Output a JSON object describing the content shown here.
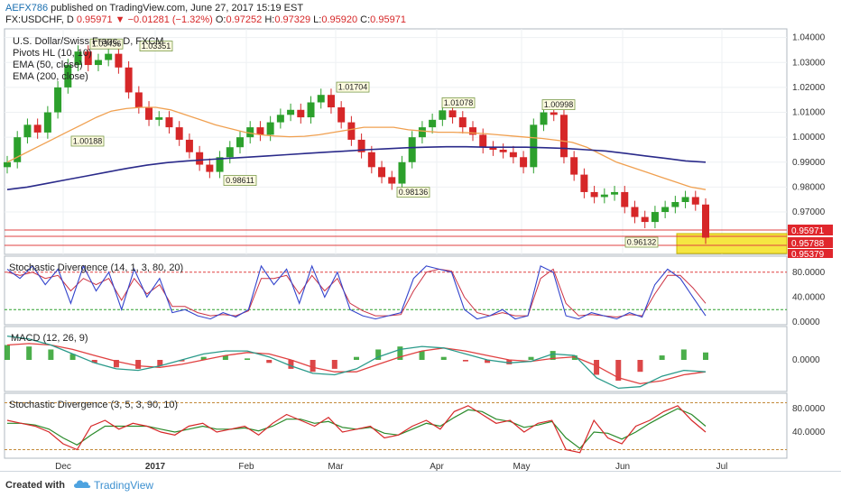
{
  "header": {
    "author": "AEFX786",
    "published_text": "published on TradingView.com, June 27, 2017 15:19 EST",
    "symbol": "FX:USDCHF, D",
    "last": "0.95971",
    "change": "−0.01281 (−1.32%)",
    "o_label": "O:",
    "o": "0.97252",
    "h_label": "H:",
    "h": "0.97329",
    "l_label": "L:",
    "l": "0.95920",
    "c_label": "C:",
    "c": "0.95971"
  },
  "footer": {
    "created_with": "Created with",
    "brand": "TradingView"
  },
  "colors": {
    "up": "#2ca02c",
    "down": "#d62728",
    "ema50": "#f0a050",
    "ema200": "#2a2a8a",
    "stoch_k": "#3344cc",
    "stoch_d": "#cc3344",
    "macd": "#2a9a8a",
    "signal": "#e04040"
  },
  "chart_data": [
    {
      "type": "candlestick",
      "title": "U.S. Dollar/Swiss Franc, D, FXCM",
      "legend": [
        "Pivots HL (10, 10)",
        "EMA (50, close)",
        "EMA (200, close)"
      ],
      "x_ticks": [
        "Dec",
        "2017",
        "Feb",
        "Mar",
        "Apr",
        "May",
        "Jun",
        "Jul"
      ],
      "y_ticks": [
        "1.04000",
        "1.03000",
        "1.02000",
        "1.01000",
        "1.00000",
        "0.99000",
        "0.98000",
        "0.97000"
      ],
      "ylim": [
        0.953,
        1.0435
      ],
      "price_tags": [
        "0.95971",
        "0.95788",
        "0.95379"
      ],
      "close_path": [
        0.99,
        1.0,
        1.005,
        1.0019,
        1.01,
        1.02,
        1.029,
        1.0344,
        1.029,
        1.031,
        1.0335,
        1.028,
        1.018,
        1.012,
        1.007,
        1.008,
        1.004,
        0.999,
        0.994,
        0.989,
        0.9861,
        0.992,
        0.996,
        1.0,
        1.004,
        1.001,
        1.006,
        1.009,
        1.011,
        1.008,
        1.014,
        1.017,
        1.012,
        1.006,
        0.999,
        0.994,
        0.988,
        0.984,
        0.9814,
        0.99,
        1.0,
        1.004,
        1.007,
        1.0108,
        1.008,
        1.004,
        1.001,
        0.996,
        0.995,
        0.994,
        0.992,
        0.988,
        1.005,
        1.01,
        1.009,
        0.992,
        0.985,
        0.978,
        0.976,
        0.977,
        0.978,
        0.972,
        0.968,
        0.966,
        0.97,
        0.972,
        0.974,
        0.976,
        0.973,
        0.9597
      ],
      "ema50_path": [
        0.99,
        0.993,
        0.996,
        0.999,
        1.002,
        1.005,
        1.008,
        1.0105,
        1.0115,
        1.012,
        1.012,
        1.011,
        1.009,
        1.007,
        1.005,
        1.0035,
        1.002,
        1.001,
        1.0005,
        1.0002,
        1.0004,
        1.001,
        1.002,
        1.003,
        1.004,
        1.004,
        1.004,
        1.003,
        1.0025,
        1.002,
        1.002,
        1.0018,
        1.0015,
        1.001,
        1.0005,
        1.0,
        0.9995,
        0.9988,
        0.998,
        0.996,
        0.993,
        0.99,
        0.988,
        0.986,
        0.984,
        0.982,
        0.98,
        0.979
      ],
      "ema200_path": [
        0.979,
        0.98,
        0.9815,
        0.983,
        0.9845,
        0.986,
        0.9875,
        0.9888,
        0.9898,
        0.9905,
        0.991,
        0.9915,
        0.992,
        0.9925,
        0.993,
        0.9935,
        0.994,
        0.9945,
        0.995,
        0.9954,
        0.9958,
        0.996,
        0.9962,
        0.9962,
        0.996,
        0.996,
        0.996,
        0.9958,
        0.9955,
        0.995,
        0.9945,
        0.9935,
        0.9925,
        0.9915,
        0.9905,
        0.99
      ],
      "pivots": [
        {
          "label": "1.03436",
          "value": 1.03436,
          "kind": "high"
        },
        {
          "label": "1.03351",
          "value": 1.03351,
          "kind": "high"
        },
        {
          "label": "1.00188",
          "value": 1.00188,
          "kind": "low"
        },
        {
          "label": "0.98611",
          "value": 0.98611,
          "kind": "low"
        },
        {
          "label": "1.01704",
          "value": 1.01704,
          "kind": "high"
        },
        {
          "label": "1.01078",
          "value": 1.01078,
          "kind": "high"
        },
        {
          "label": "0.98136",
          "value": 0.98136,
          "kind": "low"
        },
        {
          "label": "1.00998",
          "value": 1.00998,
          "kind": "high"
        },
        {
          "label": "0.96132",
          "value": 0.96132,
          "kind": "low"
        }
      ]
    },
    {
      "type": "line",
      "title": "Stochastic Divergence (14, 1, 3, 80, 20)",
      "y_ticks": [
        "80.0000",
        "40.0000",
        "0.0000"
      ],
      "ylim": [
        0,
        100
      ],
      "k_path": [
        85,
        70,
        90,
        60,
        85,
        30,
        90,
        50,
        80,
        20,
        85,
        40,
        70,
        15,
        20,
        10,
        5,
        15,
        8,
        20,
        90,
        60,
        85,
        30,
        90,
        40,
        80,
        20,
        10,
        5,
        10,
        15,
        70,
        90,
        85,
        80,
        20,
        5,
        10,
        20,
        5,
        10,
        90,
        80,
        10,
        5,
        15,
        10,
        5,
        15,
        8,
        60,
        85,
        70,
        40,
        10
      ],
      "d_path": [
        80,
        75,
        80,
        70,
        75,
        50,
        70,
        60,
        70,
        35,
        70,
        45,
        60,
        25,
        25,
        15,
        10,
        12,
        10,
        18,
        70,
        70,
        75,
        45,
        75,
        50,
        70,
        30,
        18,
        10,
        10,
        12,
        50,
        80,
        85,
        82,
        40,
        15,
        10,
        15,
        10,
        10,
        70,
        85,
        30,
        10,
        12,
        10,
        8,
        12,
        10,
        45,
        75,
        75,
        55,
        30
      ]
    },
    {
      "type": "bar",
      "title": "MACD (12, 26, 9)",
      "y_ticks": [
        "0.0000"
      ],
      "ylim": [
        -1,
        1
      ],
      "histogram": [
        0.5,
        0.45,
        0.35,
        0.2,
        -0.1,
        -0.25,
        -0.3,
        -0.2,
        -0.05,
        0.1,
        0.15,
        0.05,
        -0.1,
        -0.3,
        -0.4,
        -0.3,
        0.1,
        0.35,
        0.45,
        0.3,
        0.1,
        -0.05,
        -0.1,
        -0.15,
        0.1,
        0.3,
        0.15,
        -0.5,
        -0.7,
        -0.4,
        0.15,
        0.35,
        0.25
      ],
      "macd_path": [
        0.8,
        0.7,
        0.5,
        0.2,
        -0.1,
        -0.3,
        -0.35,
        -0.2,
        0.0,
        0.2,
        0.3,
        0.3,
        0.1,
        -0.2,
        -0.45,
        -0.5,
        -0.3,
        0.1,
        0.35,
        0.45,
        0.4,
        0.2,
        0.0,
        -0.1,
        -0.05,
        0.2,
        0.15,
        -0.6,
        -0.95,
        -0.9,
        -0.55,
        -0.35,
        -0.4
      ],
      "signal_path": [
        0.5,
        0.55,
        0.5,
        0.35,
        0.15,
        -0.05,
        -0.2,
        -0.25,
        -0.15,
        0.0,
        0.15,
        0.25,
        0.2,
        0.0,
        -0.25,
        -0.4,
        -0.4,
        -0.15,
        0.1,
        0.3,
        0.4,
        0.3,
        0.15,
        0.0,
        -0.05,
        0.05,
        0.1,
        -0.2,
        -0.6,
        -0.8,
        -0.7,
        -0.5,
        -0.4
      ]
    },
    {
      "type": "line",
      "title": "Stochastic Divergence (3, 5, 3, 90, 10)",
      "y_ticks": [
        "80.0000",
        "40.0000"
      ],
      "ylim": [
        0,
        100
      ],
      "k_path": [
        60,
        55,
        50,
        40,
        20,
        10,
        50,
        60,
        45,
        55,
        50,
        40,
        35,
        50,
        55,
        40,
        45,
        50,
        35,
        55,
        70,
        60,
        50,
        65,
        40,
        45,
        50,
        30,
        35,
        50,
        60,
        45,
        75,
        85,
        70,
        55,
        60,
        40,
        55,
        60,
        10,
        5,
        60,
        30,
        20,
        50,
        60,
        75,
        85,
        60,
        40
      ],
      "d_path": [
        55,
        55,
        52,
        45,
        30,
        18,
        35,
        50,
        50,
        50,
        50,
        45,
        40,
        45,
        50,
        45,
        45,
        47,
        42,
        50,
        62,
        62,
        55,
        58,
        48,
        45,
        48,
        38,
        35,
        45,
        55,
        50,
        65,
        78,
        75,
        62,
        58,
        48,
        52,
        58,
        30,
        12,
        40,
        38,
        28,
        40,
        55,
        68,
        80,
        70,
        50
      ]
    }
  ]
}
